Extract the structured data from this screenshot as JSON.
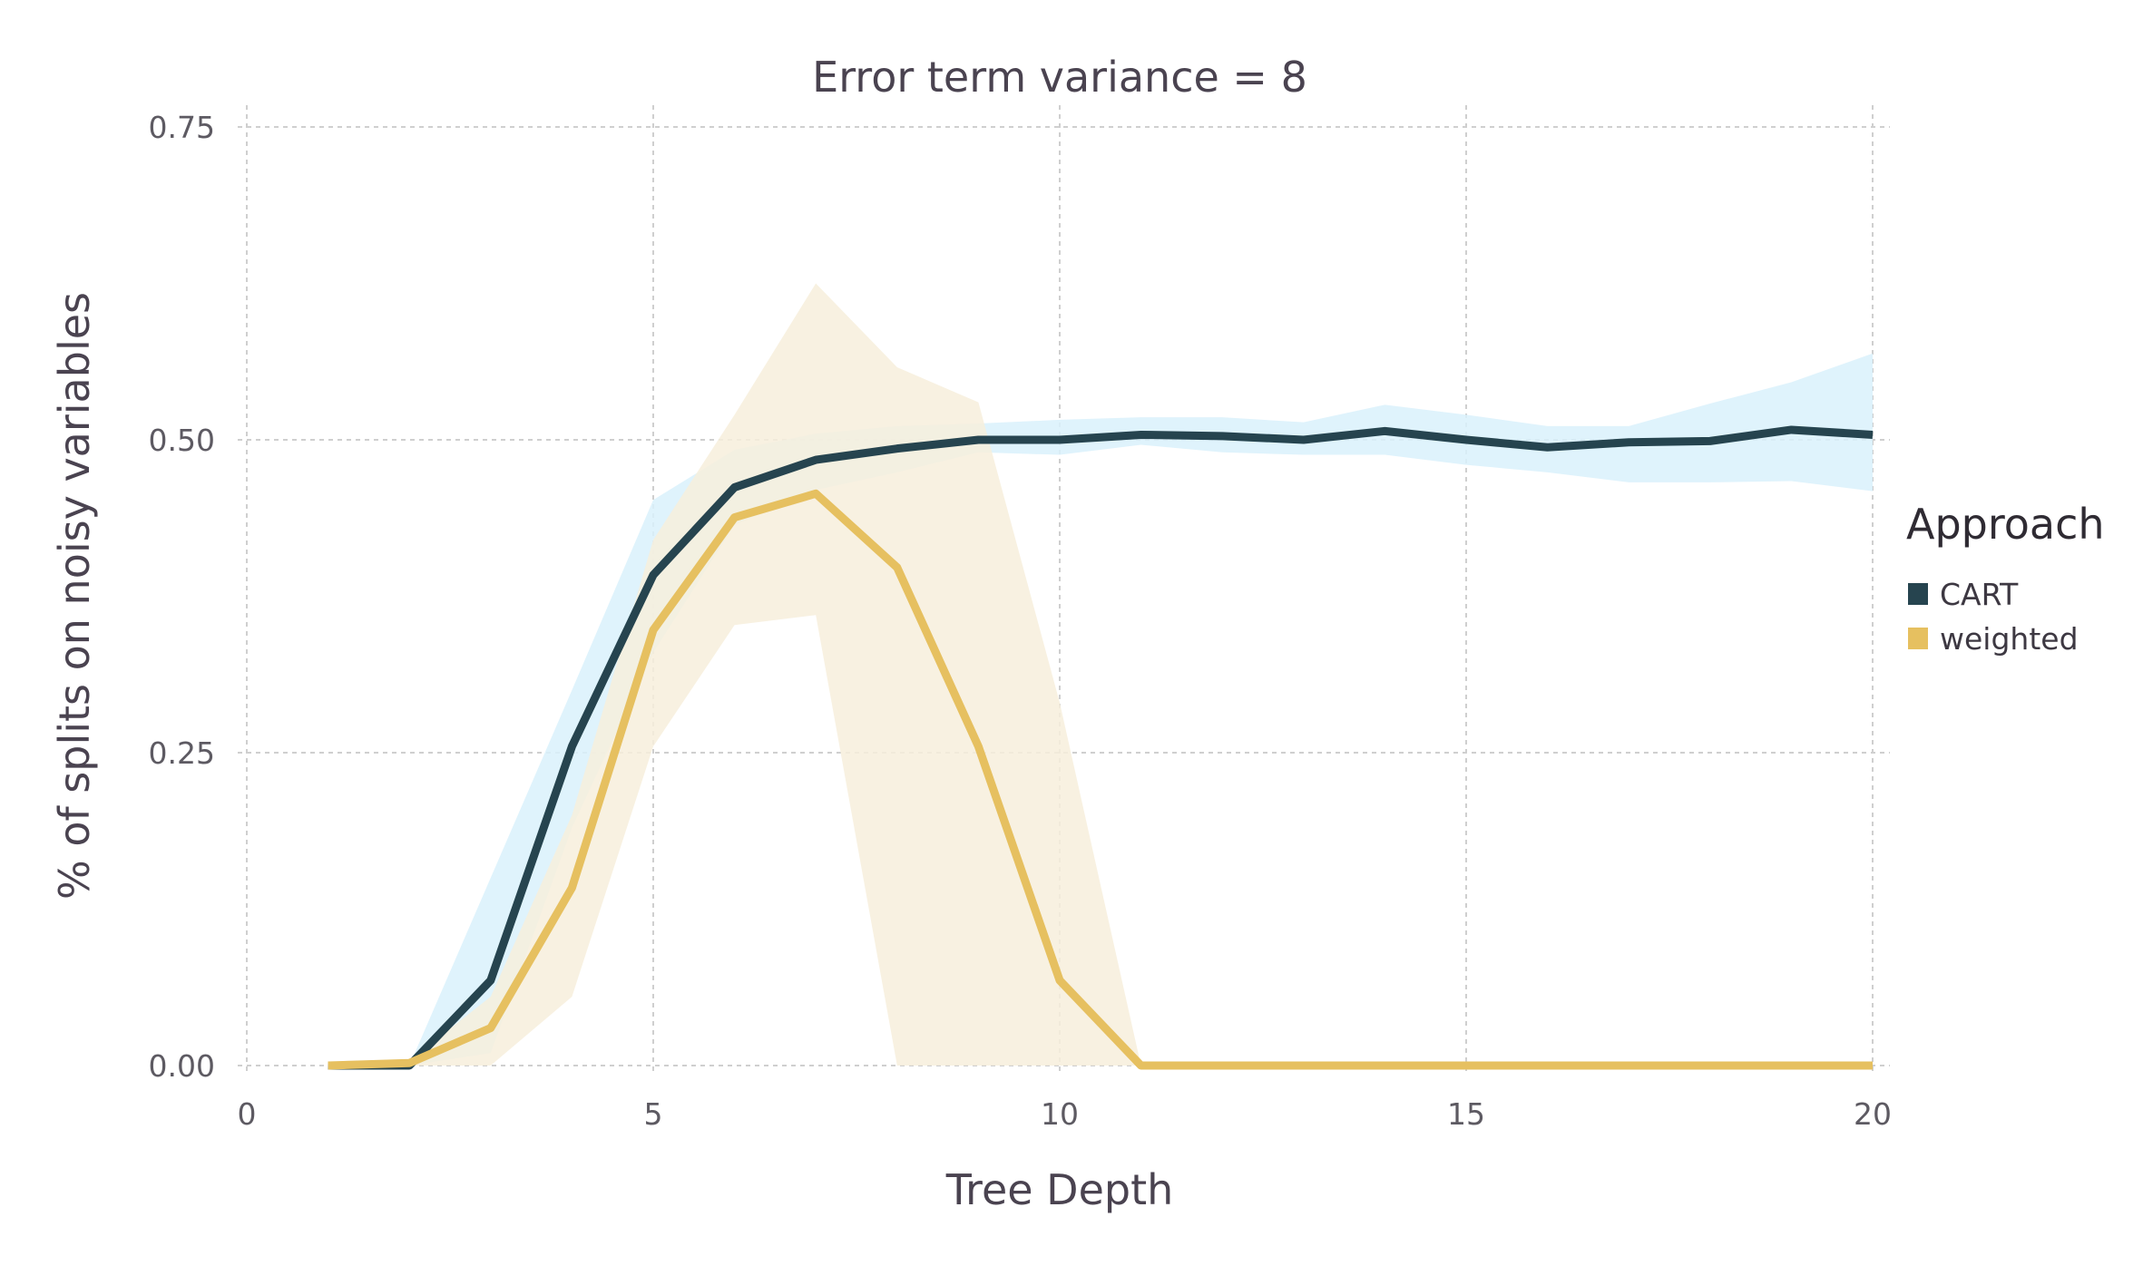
{
  "chart_data": {
    "type": "line",
    "title": "Error term variance = 8",
    "xlabel": "Tree Depth",
    "ylabel": "% of splits on noisy variables",
    "xlim": [
      0,
      20
    ],
    "ylim": [
      0,
      0.75
    ],
    "xticks": [
      0,
      5,
      10,
      15,
      20
    ],
    "xtick_labels": [
      "0",
      "5",
      "10",
      "15",
      "20"
    ],
    "yticks": [
      0,
      0.25,
      0.5,
      0.75
    ],
    "ytick_labels": [
      "0.00",
      "0.25",
      "0.50",
      "0.75"
    ],
    "grid": true,
    "legend": {
      "title": "Approach",
      "position": "right"
    },
    "series": [
      {
        "name": "CART",
        "color": "#26444f",
        "band_color": "#d9f1fb",
        "x": [
          1,
          2,
          3,
          4,
          5,
          6,
          7,
          8,
          9,
          10,
          11,
          12,
          13,
          14,
          15,
          16,
          17,
          18,
          19,
          20
        ],
        "y": [
          0.0,
          0.0,
          0.068,
          0.255,
          0.392,
          0.462,
          0.484,
          0.493,
          0.5,
          0.5,
          0.504,
          0.503,
          0.5,
          0.507,
          0.5,
          0.494,
          0.498,
          0.499,
          0.508,
          0.504
        ],
        "lower": [
          0.0,
          0.0,
          0.01,
          0.19,
          0.33,
          0.432,
          0.46,
          0.474,
          0.49,
          0.488,
          0.496,
          0.49,
          0.488,
          0.488,
          0.48,
          0.474,
          0.466,
          0.466,
          0.467,
          0.459
        ],
        "upper": [
          0.0,
          0.0,
          0.15,
          0.3,
          0.452,
          0.492,
          0.505,
          0.511,
          0.513,
          0.516,
          0.518,
          0.518,
          0.514,
          0.528,
          0.52,
          0.511,
          0.511,
          0.529,
          0.546,
          0.569
        ]
      },
      {
        "name": "weighted",
        "color": "#e6c060",
        "band_color": "#f7eedc",
        "x": [
          1,
          2,
          3,
          4,
          5,
          6,
          7,
          8,
          9,
          10,
          11,
          12,
          13,
          14,
          15,
          16,
          17,
          18,
          19,
          20
        ],
        "y": [
          0.0,
          0.002,
          0.03,
          0.142,
          0.348,
          0.438,
          0.457,
          0.398,
          0.255,
          0.068,
          0.0,
          0.0,
          0.0,
          0.0,
          0.0,
          0.0,
          0.0,
          0.0,
          0.0,
          0.0
        ],
        "lower": [
          0.0,
          0.0,
          0.0,
          0.055,
          0.255,
          0.352,
          0.36,
          0.0,
          0.0,
          0.0,
          0.0,
          0.0,
          0.0,
          0.0,
          0.0,
          0.0,
          0.0,
          0.0,
          0.0,
          0.0
        ],
        "upper": [
          0.0,
          0.004,
          0.055,
          0.2,
          0.42,
          0.52,
          0.625,
          0.558,
          0.53,
          0.29,
          0.0,
          0.0,
          0.0,
          0.0,
          0.0,
          0.0,
          0.0,
          0.0,
          0.0,
          0.0
        ]
      }
    ]
  }
}
